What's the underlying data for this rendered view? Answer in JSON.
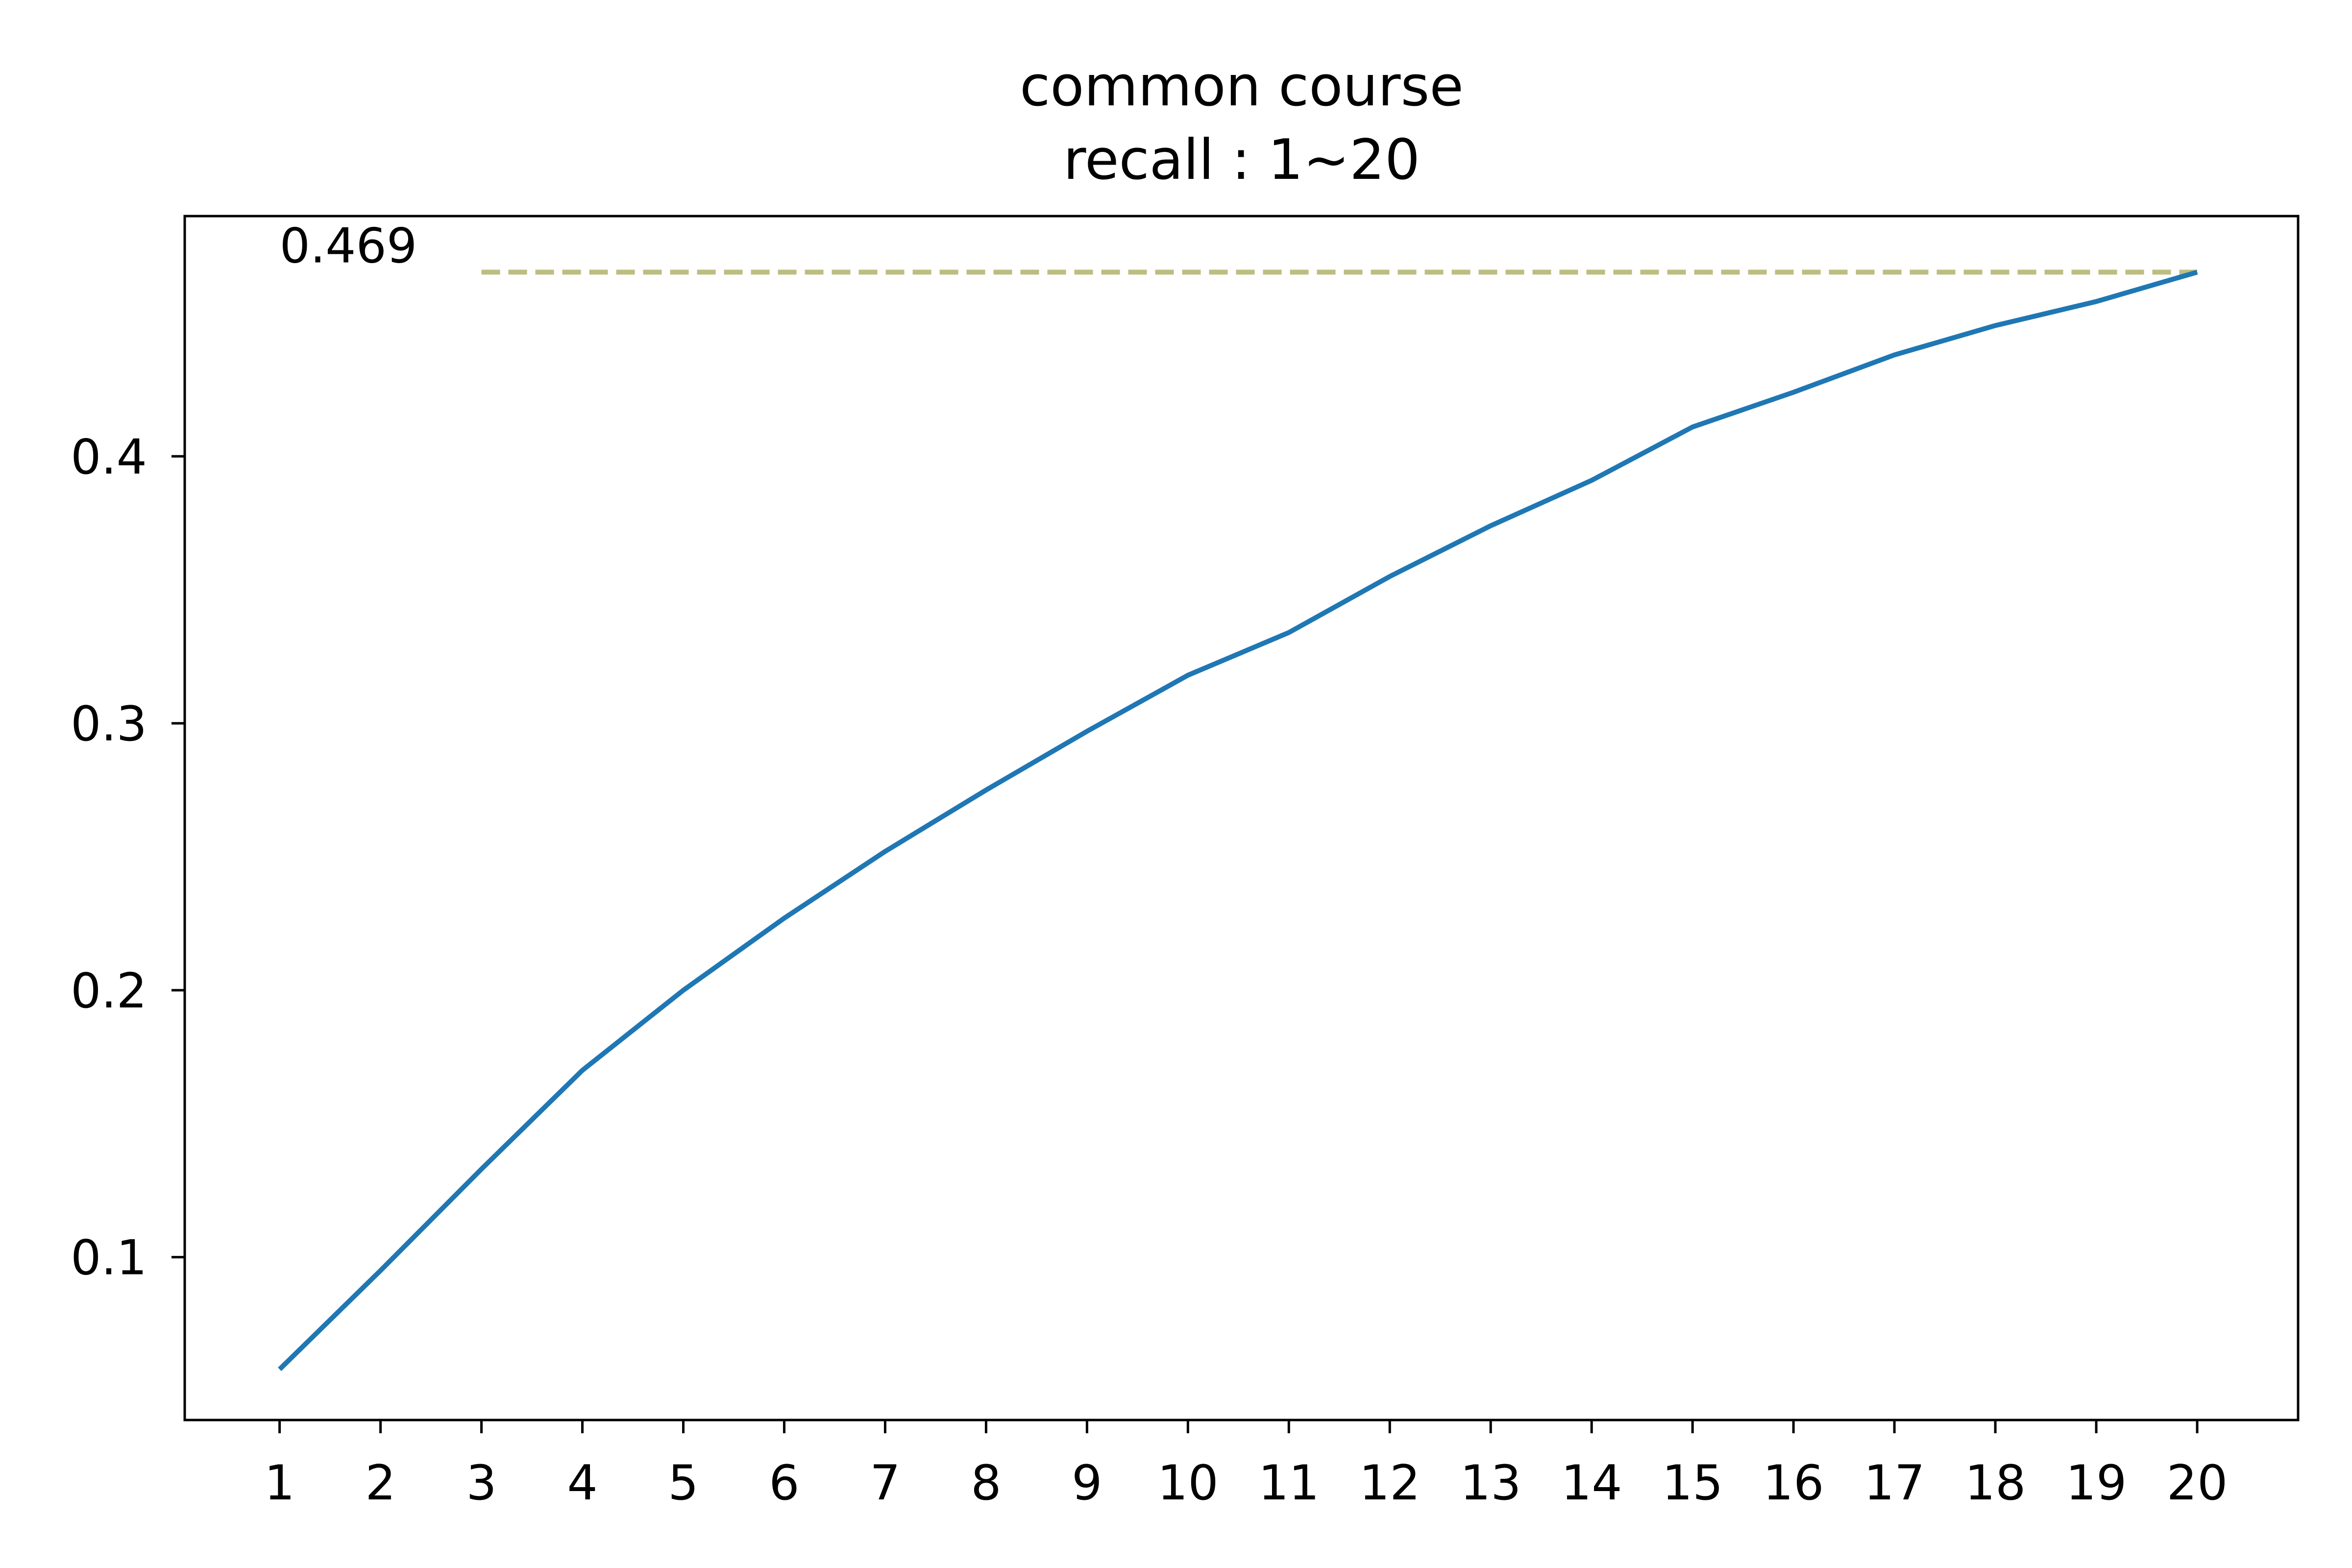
{
  "chart_data": {
    "type": "line",
    "title": "common course",
    "subtitle": "recall : 1~20",
    "xlabel": "",
    "ylabel": "",
    "x": [
      1,
      2,
      3,
      4,
      5,
      6,
      7,
      8,
      9,
      10,
      11,
      12,
      13,
      14,
      15,
      16,
      17,
      18,
      19,
      20
    ],
    "x_tick_labels": [
      "1",
      "2",
      "3",
      "4",
      "5",
      "6",
      "7",
      "8",
      "9",
      "10",
      "11",
      "12",
      "13",
      "14",
      "15",
      "16",
      "17",
      "18",
      "19",
      "20"
    ],
    "y_ticks": [
      0.1,
      0.2,
      0.3,
      0.4
    ],
    "y_tick_labels": [
      "0.1",
      "0.2",
      "0.3",
      "0.4"
    ],
    "xlim": [
      0.06,
      21.0
    ],
    "ylim": [
      0.039,
      0.49
    ],
    "grid": false,
    "series": [
      {
        "color": "#1f77b4",
        "values": [
          0.058,
          0.095,
          0.133,
          0.17,
          0.2,
          0.227,
          0.252,
          0.275,
          0.297,
          0.318,
          0.334,
          0.355,
          0.374,
          0.391,
          0.411,
          0.424,
          0.438,
          0.449,
          0.458,
          0.469
        ]
      }
    ],
    "reference_line": {
      "y": 0.469,
      "x_from": 3,
      "x_to": 20,
      "color": "#bcbd80",
      "style": "dashed"
    },
    "annotations": [
      {
        "text": "0.469",
        "x": 1,
        "y": 0.469
      }
    ]
  }
}
